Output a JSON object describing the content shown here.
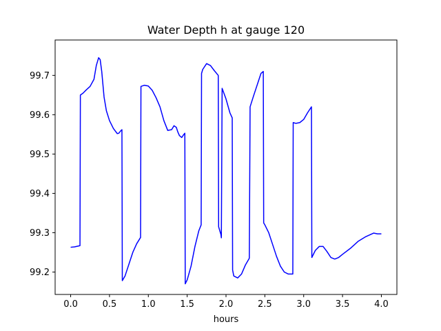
{
  "chart_data": {
    "type": "line",
    "title": "Water Depth h at gauge 120",
    "xlabel": "hours",
    "ylabel": "",
    "xlim": [
      -0.2,
      4.2
    ],
    "ylim": [
      99.143,
      99.79
    ],
    "xticks": [
      {
        "value": 0.0,
        "label": "0.0"
      },
      {
        "value": 0.5,
        "label": "0.5"
      },
      {
        "value": 1.0,
        "label": "1.0"
      },
      {
        "value": 1.5,
        "label": "1.5"
      },
      {
        "value": 2.0,
        "label": "2.0"
      },
      {
        "value": 2.5,
        "label": "2.5"
      },
      {
        "value": 3.0,
        "label": "3.0"
      },
      {
        "value": 3.5,
        "label": "3.5"
      },
      {
        "value": 4.0,
        "label": "4.0"
      }
    ],
    "yticks": [
      {
        "value": 99.2,
        "label": "99.2"
      },
      {
        "value": 99.3,
        "label": "99.3"
      },
      {
        "value": 99.4,
        "label": "99.4"
      },
      {
        "value": 99.5,
        "label": "99.5"
      },
      {
        "value": 99.6,
        "label": "99.6"
      },
      {
        "value": 99.7,
        "label": "99.7"
      }
    ],
    "grid": false,
    "line_color": "#0000ff",
    "series": [
      {
        "x": [
          0.0,
          0.05,
          0.12,
          0.125,
          0.16,
          0.2,
          0.25,
          0.3,
          0.33,
          0.36,
          0.38,
          0.4,
          0.43,
          0.46,
          0.5,
          0.55,
          0.6,
          0.62,
          0.64,
          0.66,
          0.665,
          0.7,
          0.75,
          0.8,
          0.85,
          0.9,
          0.905,
          0.95,
          1.0,
          1.05,
          1.1,
          1.15,
          1.2,
          1.25,
          1.3,
          1.33,
          1.36,
          1.38,
          1.4,
          1.43,
          1.45,
          1.47,
          1.475,
          1.5,
          1.55,
          1.6,
          1.65,
          1.68,
          1.685,
          1.7,
          1.75,
          1.8,
          1.85,
          1.9,
          1.905,
          1.92,
          1.935,
          1.94,
          1.95,
          2.0,
          2.05,
          2.08,
          2.085,
          2.1,
          2.15,
          2.2,
          2.25,
          2.3,
          2.31,
          2.35,
          2.4,
          2.45,
          2.48,
          2.485,
          2.5,
          2.55,
          2.6,
          2.65,
          2.7,
          2.75,
          2.8,
          2.86,
          2.865,
          2.9,
          2.95,
          3.0,
          3.05,
          3.1,
          3.105,
          3.15,
          3.2,
          3.25,
          3.3,
          3.35,
          3.4,
          3.45,
          3.5,
          3.6,
          3.7,
          3.8,
          3.9,
          3.95,
          4.0
        ],
        "y": [
          99.263,
          99.264,
          99.267,
          99.65,
          99.655,
          99.663,
          99.672,
          99.69,
          99.725,
          99.745,
          99.74,
          99.71,
          99.645,
          99.61,
          99.585,
          99.565,
          99.552,
          99.553,
          99.558,
          99.562,
          99.178,
          99.19,
          99.22,
          99.25,
          99.272,
          99.288,
          99.672,
          99.675,
          99.673,
          99.662,
          99.643,
          99.62,
          99.585,
          99.56,
          99.562,
          99.572,
          99.568,
          99.556,
          99.547,
          99.542,
          99.548,
          99.553,
          99.17,
          99.18,
          99.215,
          99.265,
          99.305,
          99.32,
          99.705,
          99.715,
          99.73,
          99.725,
          99.712,
          99.7,
          99.315,
          99.305,
          99.295,
          99.287,
          99.667,
          99.64,
          99.605,
          99.592,
          99.205,
          99.19,
          99.185,
          99.195,
          99.218,
          99.235,
          99.62,
          99.645,
          99.675,
          99.705,
          99.71,
          99.325,
          99.32,
          99.3,
          99.27,
          99.24,
          99.215,
          99.2,
          99.195,
          99.195,
          99.58,
          99.578,
          99.58,
          99.588,
          99.605,
          99.62,
          99.237,
          99.255,
          99.265,
          99.265,
          99.252,
          99.237,
          99.233,
          99.237,
          99.245,
          99.26,
          99.278,
          99.29,
          99.299,
          99.297,
          99.297
        ]
      }
    ]
  }
}
